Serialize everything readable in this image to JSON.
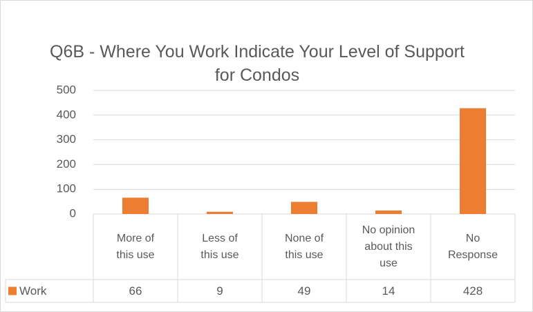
{
  "chart_data": {
    "type": "bar",
    "title": "Q6B - Where You Work Indicate Your Level of Support for Condos",
    "categories": [
      "More of this use",
      "Less of this use",
      "None of this use",
      "No opinion about this use",
      "No Response"
    ],
    "series": [
      {
        "name": "Work",
        "color": "#ED7D31",
        "values": [
          66,
          9,
          49,
          14,
          428
        ]
      }
    ],
    "ylim": [
      0,
      500
    ],
    "yticks": [
      0,
      100,
      200,
      300,
      400,
      500
    ],
    "grid": true
  }
}
